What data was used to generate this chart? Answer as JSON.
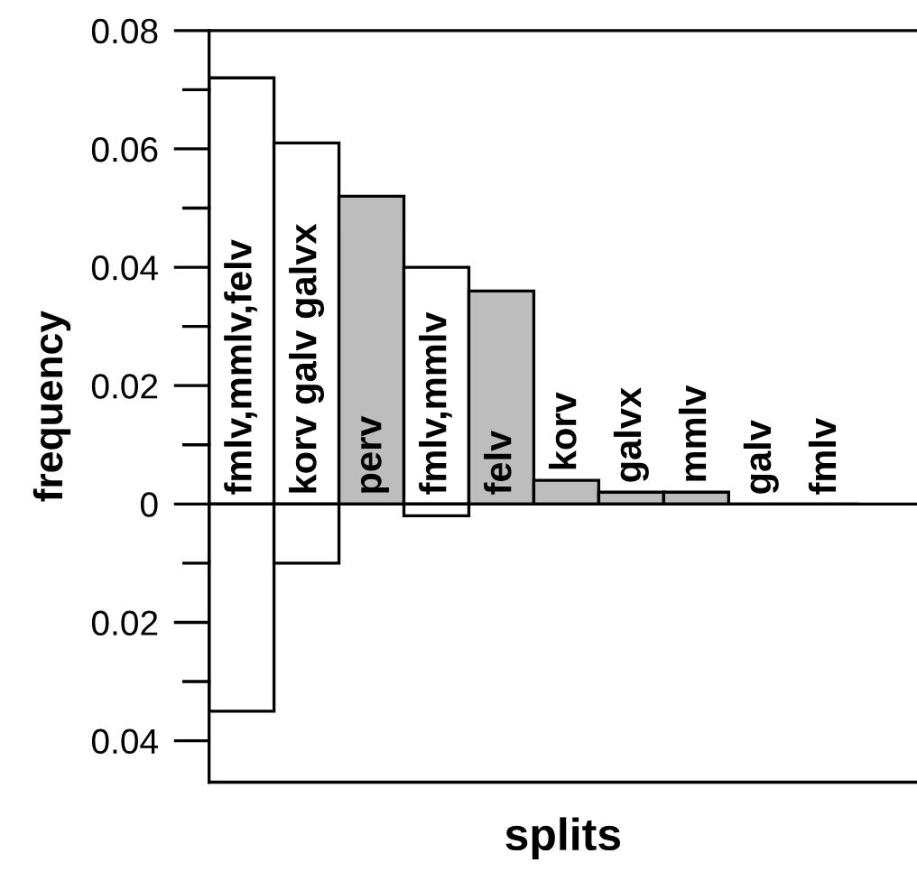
{
  "chart_data": {
    "type": "bar",
    "xlabel": "splits",
    "ylabel": "frequency",
    "categories": [
      "fmlv,mmlv,felv",
      "korv galv galvx",
      "perv",
      "fmlv,mmlv",
      "felv",
      "korv",
      "galvx",
      "mmlv",
      "galv",
      "fmlv"
    ],
    "series": [
      {
        "color": "#ffffff",
        "colors": [
          "#ffffff",
          "#ffffff",
          "#bdbdbd",
          "#ffffff",
          "#bdbdbd",
          "#bdbdbd",
          "#bdbdbd",
          "#bdbdbd",
          "#bdbdbd",
          "#bdbdbd"
        ],
        "values": [
          0.072,
          0.061,
          0.052,
          0.04,
          0.036,
          0.004,
          0.002,
          0.002,
          0,
          0
        ]
      },
      {
        "color": "#ffffff",
        "values": [
          -0.035,
          -0.01,
          null,
          -0.002,
          null,
          null,
          null,
          null,
          null,
          null
        ]
      }
    ],
    "ylim": [
      -0.047,
      0.08
    ],
    "yticks": [
      {
        "value": -0.04,
        "label": "0.04"
      },
      {
        "value": -0.03,
        "label": null
      },
      {
        "value": -0.02,
        "label": "0.02"
      },
      {
        "value": -0.01,
        "label": null
      },
      0,
      {
        "value": 0.01,
        "label": null
      },
      0.02,
      {
        "value": 0.03,
        "label": null
      },
      0.04,
      {
        "value": 0.05,
        "label": null
      },
      0.06,
      {
        "value": 0.07,
        "label": null
      },
      0.08
    ],
    "grid": false,
    "legend": false
  }
}
